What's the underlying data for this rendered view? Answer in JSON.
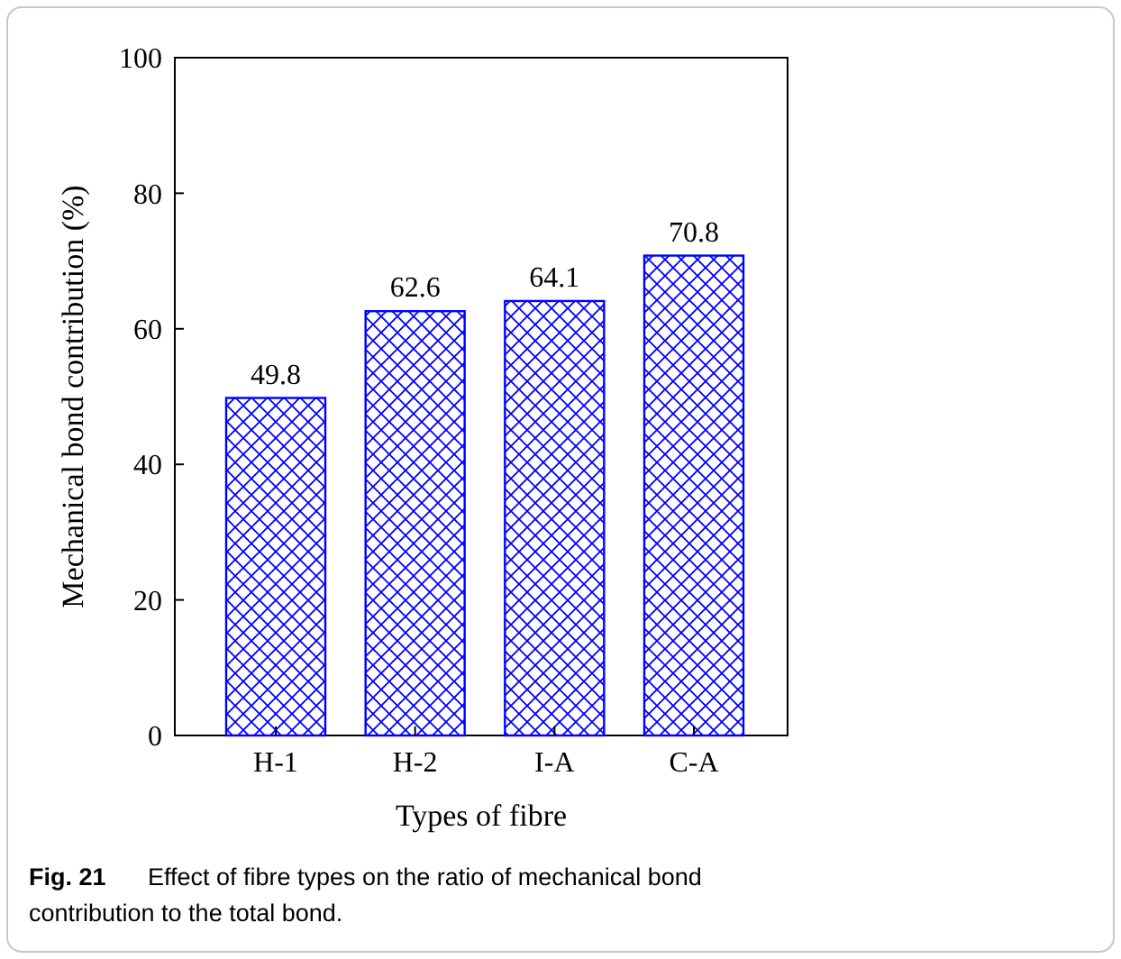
{
  "chart_data": {
    "type": "bar",
    "xlabel": "Types of fibre",
    "ylabel": "Mechanical bond contribution (%)",
    "categories": [
      "H-1",
      "H-2",
      "I-A",
      "C-A"
    ],
    "values": [
      49.8,
      62.6,
      64.1,
      70.8
    ],
    "color": "#0000ff",
    "data_labels": true,
    "ylim": [
      0,
      100
    ],
    "yticks": [
      0,
      20,
      40,
      60,
      80,
      100
    ],
    "annotations": [
      "Fig. 21",
      "Effect of fibre types on the ratio of mechanical bond contribution to the total bond."
    ]
  }
}
